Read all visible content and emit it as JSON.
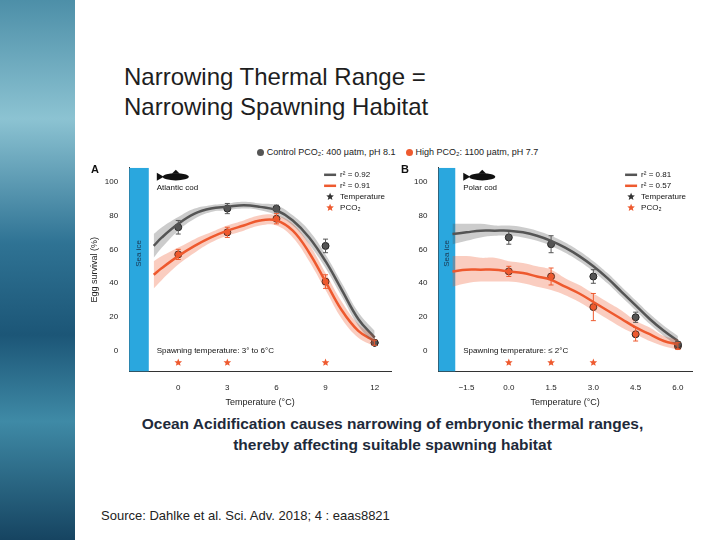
{
  "title": [
    "Narrowing Thermal Range =",
    "Narrowing Spawning Habitat"
  ],
  "conditions": [
    {
      "label": "Control PCO₂: 400 μatm, pH 8.1",
      "color": "#555555"
    },
    {
      "label": "High PCO₂: 1100 μatm, pH 7.7",
      "color": "#ee5a2f"
    }
  ],
  "caption": [
    "Ocean Acidification causes narrowing of embryonic thermal ranges,",
    "thereby affecting suitable spawning habitat"
  ],
  "source": "Source: Dahlke et al. Sci. Adv. 2018; 4 : eaas8821",
  "chart_data": [
    {
      "type": "line",
      "panel": "A",
      "fish_label": "Atlantic cod",
      "x_label": "Temperature (°C)",
      "y_label": "Egg survival (%)",
      "annotation": "Spawning temperature: 3° to 6°C",
      "sea_ice": {
        "label": "Sea ice",
        "x_range": [
          -3,
          -1.8
        ]
      },
      "xlim": [
        -3,
        13
      ],
      "xticks": [
        0,
        3,
        6,
        9,
        12
      ],
      "ylim": [
        -12,
        108
      ],
      "yticks": [
        0,
        20,
        40,
        60,
        80,
        100
      ],
      "grid": false,
      "series": [
        {
          "name": "r² = 0.92",
          "color": "#555555",
          "marker": "circle",
          "x": [
            0,
            3,
            6,
            9,
            12
          ],
          "values": [
            73,
            84,
            84,
            62,
            5
          ],
          "errors": [
            4,
            3,
            2,
            4,
            1.5
          ],
          "fit": {
            "x": [
              -1.5,
              -1,
              0,
              1,
              2,
              3,
              4,
              5,
              6,
              7,
              8,
              9,
              10,
              11,
              12
            ],
            "values": [
              62,
              67,
              75,
              81,
              84,
              85,
              86,
              85,
              83,
              77,
              67,
              53,
              36,
              19,
              8
            ],
            "lower": [
              55,
              61,
              71,
              78,
              82,
              83,
              84,
              83,
              80,
              74,
              63,
              49,
              32,
              15,
              4
            ],
            "upper": [
              69,
              73,
              79,
              84,
              86,
              87,
              88,
              87,
              86,
              80,
              71,
              57,
              40,
              23,
              12
            ]
          }
        },
        {
          "name": "r² = 0.91",
          "color": "#ee5a2f",
          "marker": "circle",
          "x": [
            0,
            3,
            6,
            9,
            12
          ],
          "values": [
            57,
            70,
            78,
            41,
            5
          ],
          "errors": [
            3,
            3,
            3,
            4,
            1.5
          ],
          "fit": {
            "x": [
              -1.5,
              -1,
              0,
              1,
              2,
              3,
              4,
              5,
              6,
              7,
              8,
              9,
              10,
              11,
              12
            ],
            "values": [
              45,
              49,
              56,
              62,
              67,
              71,
              74,
              77,
              77,
              71,
              58,
              41,
              24,
              12,
              6
            ],
            "lower": [
              37,
              42,
              51,
              58,
              64,
              68,
              71,
              74,
              74,
              67,
              53,
              36,
              19,
              8,
              3
            ],
            "upper": [
              53,
              56,
              61,
              66,
              70,
              74,
              77,
              80,
              80,
              75,
              63,
              46,
              29,
              16,
              9
            ]
          }
        }
      ],
      "markers_legend": [
        {
          "label": "Temperature",
          "color": "#333333",
          "marker": "star"
        },
        {
          "label": "PCO₂",
          "color": "#ee5a2f",
          "marker": "star"
        }
      ],
      "pco2_stars": [
        0,
        3,
        9
      ]
    },
    {
      "type": "line",
      "panel": "B",
      "fish_label": "Polar cod",
      "x_label": "Temperature (°C)",
      "annotation": "Spawning temperature: ≤ 2°C",
      "sea_ice": {
        "label": "Sea ice",
        "x_range": [
          -2.5,
          -1.9
        ]
      },
      "xlim": [
        -2.5,
        6.5
      ],
      "xticks": [
        {
          "value": -1.5,
          "label": "−1.5"
        },
        {
          "value": 0,
          "label": "0.0"
        },
        1.5,
        {
          "value": 3,
          "label": "3.0"
        },
        4.5,
        {
          "value": 6,
          "label": "6.0"
        }
      ],
      "ylim": [
        -12,
        108
      ],
      "yticks": [
        0,
        20,
        40,
        60,
        80,
        100
      ],
      "grid": false,
      "series": [
        {
          "name": "r² = 0.81",
          "color": "#555555",
          "marker": "circle",
          "x": [
            0,
            1.5,
            3,
            4.5,
            6
          ],
          "values": [
            67,
            63,
            44,
            20,
            4
          ],
          "errors": [
            4,
            5,
            4,
            3,
            1.5
          ],
          "fit": {
            "x": [
              -2,
              -1.5,
              -1,
              -0.5,
              0,
              0.5,
              1,
              1.5,
              2,
              2.5,
              3,
              3.5,
              4,
              4.5,
              5,
              5.5,
              6
            ],
            "values": [
              69,
              70,
              71,
              71,
              71,
              70,
              68,
              65,
              61,
              56,
              50,
              43,
              35,
              27,
              19,
              12,
              6
            ],
            "lower": [
              63,
              65,
              67,
              68,
              68,
              67,
              65,
              62,
              58,
              53,
              47,
              40,
              32,
              24,
              16,
              9,
              3
            ],
            "upper": [
              75,
              75,
              75,
              74,
              74,
              73,
              71,
              68,
              64,
              59,
              53,
              46,
              38,
              30,
              22,
              15,
              9
            ]
          }
        },
        {
          "name": "r² = 0.57",
          "color": "#ee5a2f",
          "marker": "circle",
          "x": [
            0,
            1.5,
            3,
            4.5,
            6
          ],
          "values": [
            47,
            44,
            26,
            10,
            3
          ],
          "errors": [
            3,
            5,
            8,
            4,
            2
          ],
          "fit": {
            "x": [
              -2,
              -1.5,
              -1,
              -0.5,
              0,
              0.5,
              1,
              1.5,
              2,
              2.5,
              3,
              3.5,
              4,
              4.5,
              5,
              5.5,
              6
            ],
            "values": [
              47,
              48,
              48,
              48,
              47,
              46,
              44,
              42,
              38,
              34,
              29,
              24,
              19,
              14,
              10,
              6,
              4
            ],
            "lower": [
              38,
              40,
              41,
              41,
              41,
              40,
              38,
              36,
              33,
              29,
              24,
              19,
              14,
              10,
              6,
              3,
              1
            ],
            "upper": [
              56,
              56,
              55,
              55,
              53,
              52,
              50,
              48,
              43,
              39,
              34,
              29,
              24,
              18,
              14,
              9,
              7
            ]
          }
        }
      ],
      "markers_legend": [
        {
          "label": "Temperature",
          "color": "#333333",
          "marker": "star"
        },
        {
          "label": "PCO₂",
          "color": "#ee5a2f",
          "marker": "star"
        }
      ],
      "pco2_stars": [
        0,
        1.5,
        3
      ]
    }
  ]
}
